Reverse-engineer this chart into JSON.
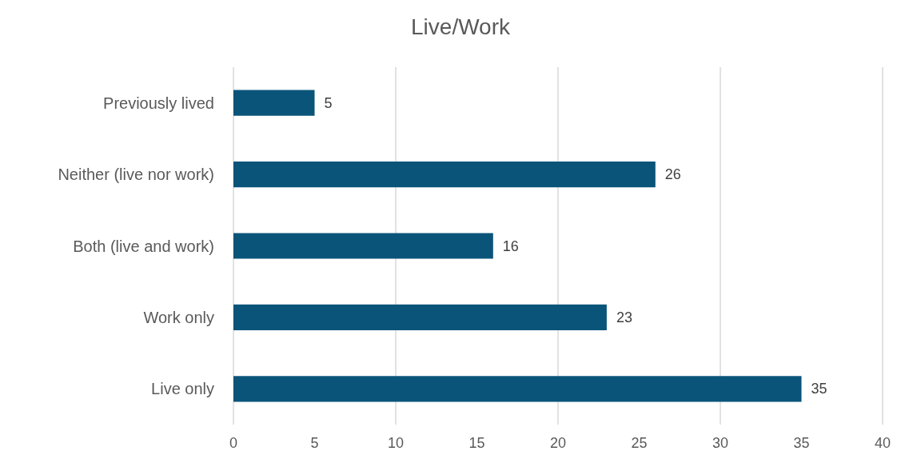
{
  "chart_data": {
    "type": "bar",
    "title": "Live/Work",
    "orientation": "horizontal",
    "categories": [
      "Previously lived",
      "Neither (live nor work)",
      "Both (live and work)",
      "Work only",
      "Live only"
    ],
    "values": [
      5,
      26,
      16,
      23,
      35
    ],
    "color": "#0a5479",
    "xlim": [
      0,
      40
    ],
    "xticks": [
      0,
      5,
      10,
      15,
      20,
      25,
      30,
      35,
      40
    ],
    "grid": "x",
    "data_labels": true
  }
}
